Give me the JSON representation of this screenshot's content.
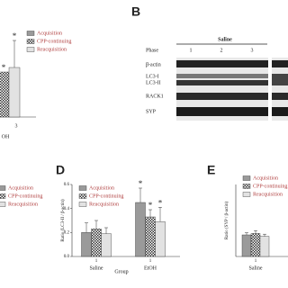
{
  "figure": {
    "panel_b": {
      "label": "B",
      "header": "Saline",
      "phase_label": "Phase",
      "phases": [
        "1",
        "2",
        "3"
      ],
      "rows": [
        "β-actin",
        "LC3-I",
        "LC3-II",
        "RACK1",
        "SYP"
      ]
    },
    "panel_c": {
      "legend": [
        "Acquisition",
        "CPP-continuing",
        "Reacquisition"
      ]
    }
  },
  "chart_data": [
    {
      "type": "bar",
      "categories": [
        "3"
      ],
      "x_label": "OH",
      "ylim": [
        0,
        1
      ],
      "series": [
        {
          "name": "Acquisition",
          "color": "#9a9a9a",
          "values": [
            null
          ],
          "errors": [
            null
          ]
        },
        {
          "name": "CPP-continuing",
          "color": "#ffffff",
          "pattern": "checker",
          "values": [
            0.5
          ],
          "errors": [
            null
          ]
        },
        {
          "name": "Reacquisition",
          "color": "#e2e2e2",
          "values": [
            0.55
          ],
          "errors": [
            0.3
          ]
        }
      ],
      "annotations": [
        {
          "text": "*",
          "series": 1,
          "index": 0
        },
        {
          "text": "*",
          "series": 2,
          "index": 0
        }
      ]
    },
    {
      "type": "bar",
      "panel": "D",
      "categories": [
        "Saline",
        "EtOH"
      ],
      "tick_labels": [
        "1",
        "1"
      ],
      "x_label": "Group",
      "y_label": "Ratio (LC3-II / β-actin)",
      "ylim": [
        0,
        0.6
      ],
      "yticks": [
        {
          "value": 0,
          "label": "0.0"
        },
        {
          "value": 0.2,
          "label": "0.2"
        },
        {
          "value": 0.4,
          "label": "0.4"
        },
        {
          "value": 0.6,
          "label": "0.6"
        }
      ],
      "series": [
        {
          "name": "Acquisition",
          "color": "#9a9a9a",
          "values": [
            0.2,
            0.45
          ],
          "errors": [
            0.08,
            0.12
          ]
        },
        {
          "name": "CPP-continuing",
          "color": "#ffffff",
          "pattern": "checker",
          "values": [
            0.23,
            0.33
          ],
          "errors": [
            0.07,
            0.06
          ]
        },
        {
          "name": "Reacquisition",
          "color": "#e2e2e2",
          "values": [
            0.19,
            0.29
          ],
          "errors": [
            0.05,
            0.12
          ]
        }
      ],
      "annotations": [
        {
          "text": "*",
          "series": 0,
          "index": 1
        },
        {
          "text": "*",
          "series": 1,
          "index": 1
        },
        {
          "text": "*",
          "series": 2,
          "index": 1
        }
      ]
    },
    {
      "type": "bar",
      "panel": "E",
      "categories": [
        "Saline"
      ],
      "tick_labels": [
        "1"
      ],
      "y_label": "Ratio (SYP / β-actin)",
      "ylim": [
        0,
        1
      ],
      "series": [
        {
          "name": "Acquisition",
          "color": "#9a9a9a",
          "values": [
            0.3
          ],
          "errors": [
            0.03
          ]
        },
        {
          "name": "CPP-continuing",
          "color": "#ffffff",
          "pattern": "checker",
          "values": [
            0.32
          ],
          "errors": [
            0.04
          ]
        },
        {
          "name": "Reacquisition",
          "color": "#e2e2e2",
          "values": [
            0.28
          ],
          "errors": [
            0.03
          ]
        }
      ]
    }
  ]
}
